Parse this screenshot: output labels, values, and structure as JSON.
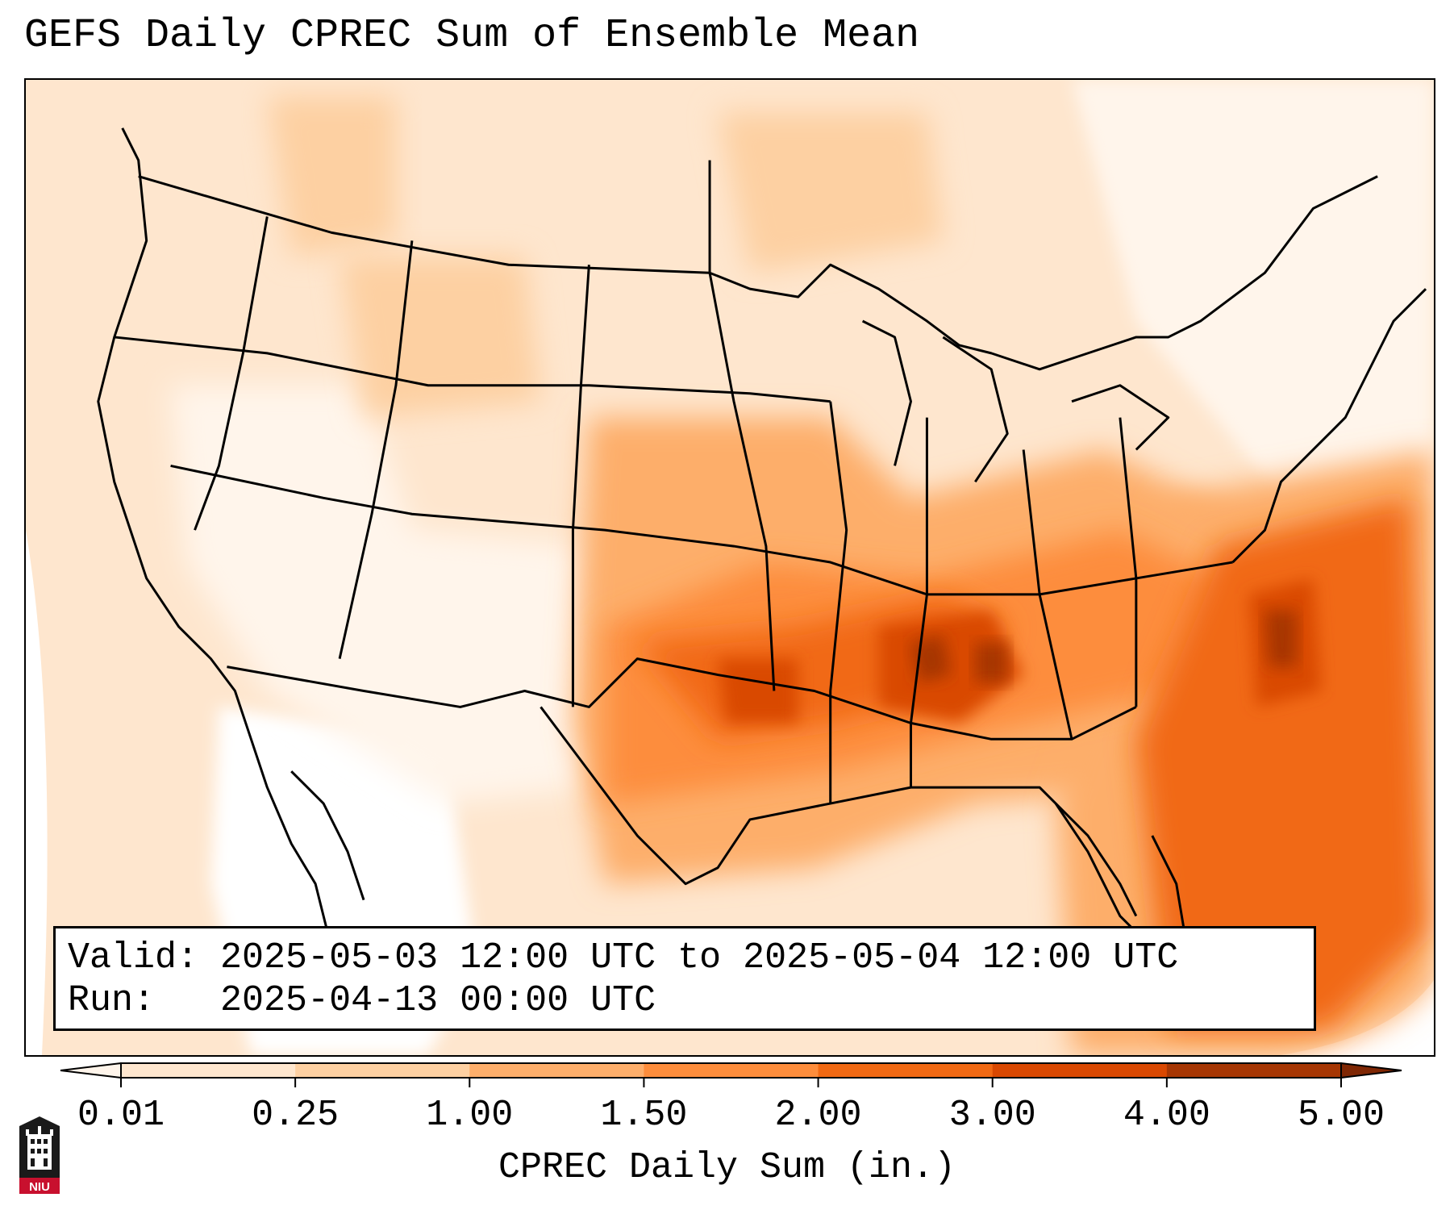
{
  "title": "GEFS Daily CPREC Sum of Ensemble Mean",
  "info": {
    "valid_label": "Valid:",
    "valid_value": "2025-05-03 12:00 UTC to 2025-05-04 12:00 UTC",
    "run_label": "Run:",
    "run_value": "2025-04-13 00:00 UTC"
  },
  "colorbar": {
    "label": "CPREC Daily Sum (in.)",
    "ticks": [
      "0.01",
      "0.25",
      "1.00",
      "1.50",
      "2.00",
      "3.00",
      "4.00",
      "5.00"
    ],
    "colors": [
      "#fff5eb",
      "#fee6ce",
      "#fdd0a2",
      "#fdae6b",
      "#fd8d3c",
      "#f16913",
      "#d94801",
      "#a63603",
      "#7f2704"
    ],
    "extend": "both"
  },
  "logo": {
    "text": "NIU",
    "colors": {
      "red": "#c8102e",
      "dark": "#1a1a1a"
    }
  },
  "map": {
    "projection": "lambert-conformal",
    "region": "CONUS",
    "background_color": "#ffffff",
    "boundary_color": "#000000"
  }
}
